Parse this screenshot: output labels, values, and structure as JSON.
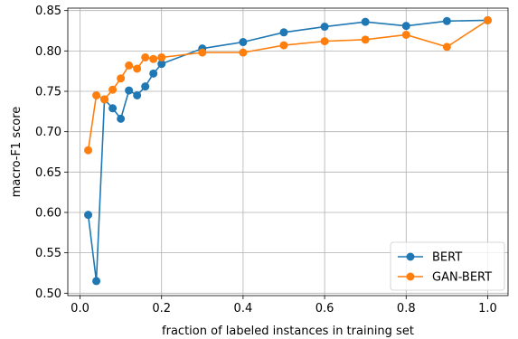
{
  "chart_data": {
    "type": "line",
    "xlabel": "fraction of labeled instances in training set",
    "ylabel": "macro-F1 score",
    "xlim": [
      -0.03,
      1.05
    ],
    "ylim": [
      0.497,
      0.853
    ],
    "xticks": [
      0.0,
      0.2,
      0.4,
      0.6,
      0.8,
      1.0
    ],
    "xtick_labels": [
      "0.0",
      "0.2",
      "0.4",
      "0.6",
      "0.8",
      "1.0"
    ],
    "yticks": [
      0.5,
      0.55,
      0.6,
      0.65,
      0.7,
      0.75,
      0.8,
      0.85
    ],
    "ytick_labels": [
      "0.50",
      "0.55",
      "0.60",
      "0.65",
      "0.70",
      "0.75",
      "0.80",
      "0.85"
    ],
    "grid": true,
    "legend_position": "bottom-right",
    "series": [
      {
        "name": "BERT",
        "color": "#1f77b4",
        "x": [
          0.02,
          0.04,
          0.06,
          0.08,
          0.1,
          0.12,
          0.14,
          0.16,
          0.18,
          0.2,
          0.3,
          0.4,
          0.5,
          0.6,
          0.7,
          0.8,
          0.9,
          1.0
        ],
        "y": [
          0.597,
          0.515,
          0.74,
          0.729,
          0.716,
          0.751,
          0.745,
          0.756,
          0.772,
          0.784,
          0.803,
          0.811,
          0.823,
          0.83,
          0.836,
          0.831,
          0.837,
          0.838
        ]
      },
      {
        "name": "GAN-BERT",
        "color": "#ff7f0e",
        "x": [
          0.02,
          0.04,
          0.06,
          0.08,
          0.1,
          0.12,
          0.14,
          0.16,
          0.18,
          0.2,
          0.3,
          0.4,
          0.5,
          0.6,
          0.7,
          0.8,
          0.9,
          1.0
        ],
        "y": [
          0.677,
          0.745,
          0.74,
          0.752,
          0.766,
          0.782,
          0.778,
          0.792,
          0.79,
          0.792,
          0.798,
          0.798,
          0.807,
          0.812,
          0.814,
          0.82,
          0.805,
          0.838
        ]
      }
    ]
  }
}
